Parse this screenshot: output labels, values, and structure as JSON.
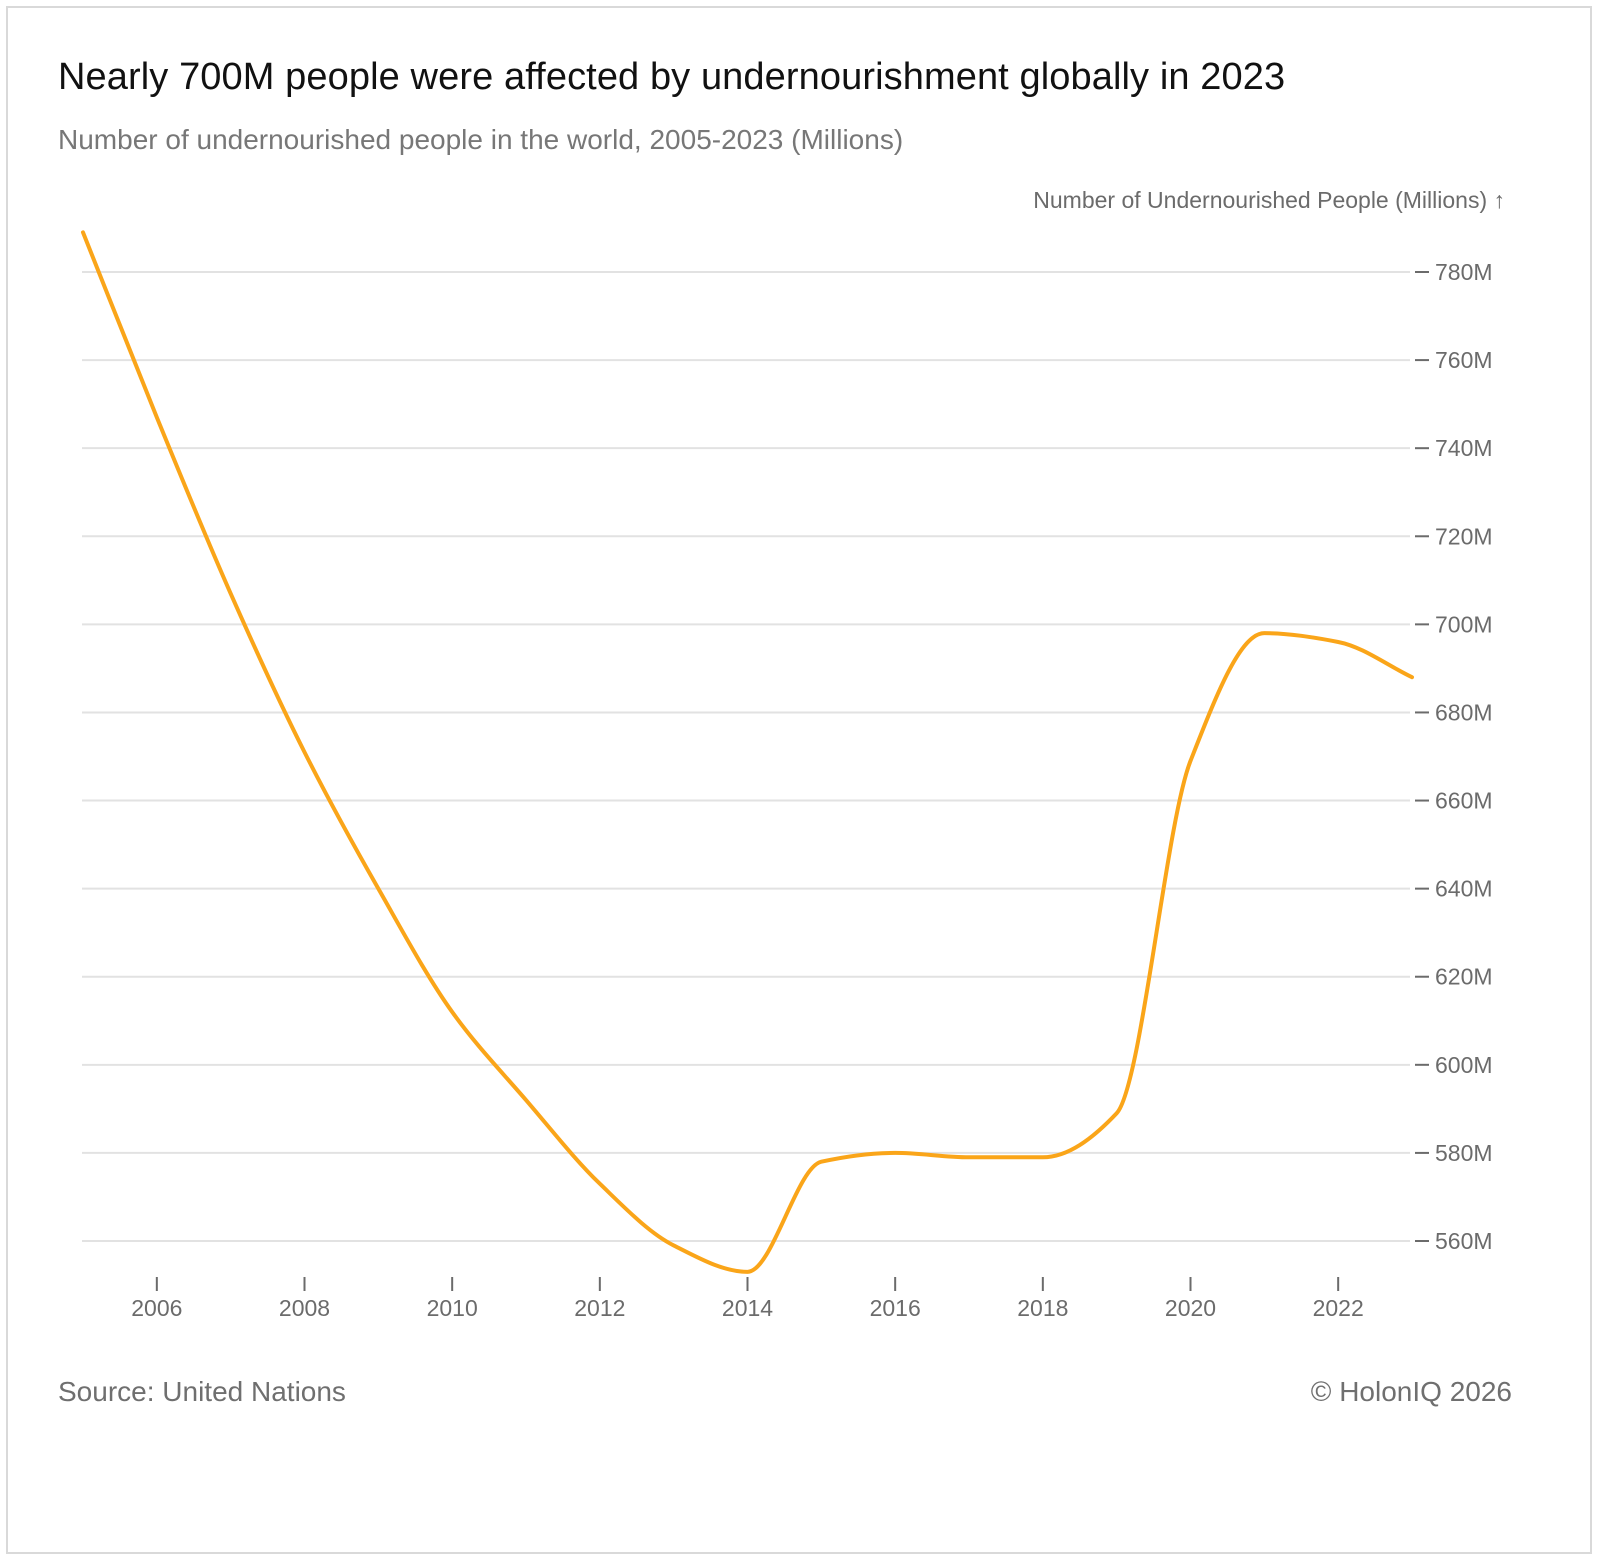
{
  "header": {
    "title": "Nearly 700M people were affected by undernourishment globally in 2023",
    "subtitle": "Number of undernourished people in the world, 2005-2023 (Millions)"
  },
  "footer": {
    "source": "Source: United Nations",
    "copyright": "© HolonIQ 2026"
  },
  "colors": {
    "line": "#FAA519",
    "grid": "#e2e2e2",
    "axis_text": "#6b6b6b"
  },
  "chart_data": {
    "type": "line",
    "title": "Nearly 700M people were affected by undernourishment globally in 2023",
    "subtitle": "Number of undernourished people in the world, 2005-2023 (Millions)",
    "xlabel": "",
    "ylabel": "Number of Undernourished People (Millions) ↑",
    "xlim": [
      2005,
      2023
    ],
    "ylim": [
      552,
      790
    ],
    "x_ticks": [
      2006,
      2008,
      2010,
      2012,
      2014,
      2016,
      2018,
      2020,
      2022
    ],
    "x_tick_labels": [
      "2006",
      "2008",
      "2010",
      "2012",
      "2014",
      "2016",
      "2018",
      "2020",
      "2022"
    ],
    "y_ticks": [
      560,
      580,
      600,
      620,
      640,
      660,
      680,
      700,
      720,
      740,
      760,
      780
    ],
    "y_tick_labels": [
      "560M",
      "580M",
      "600M",
      "620M",
      "640M",
      "660M",
      "680M",
      "700M",
      "720M",
      "740M",
      "760M",
      "780M"
    ],
    "y_axis_position": "right",
    "grid": true,
    "legend": "none",
    "series": [
      {
        "name": "Number of Undernourished People (Millions)",
        "x": [
          2005,
          2006,
          2007,
          2008,
          2009,
          2010,
          2011,
          2012,
          2013,
          2014,
          2015,
          2016,
          2017,
          2018,
          2019,
          2020,
          2021,
          2022,
          2023
        ],
        "values": [
          789,
          747,
          707,
          671,
          640,
          612,
          592,
          573,
          559,
          553,
          578,
          580,
          579,
          579,
          589,
          669,
          698,
          696,
          688
        ]
      }
    ]
  }
}
